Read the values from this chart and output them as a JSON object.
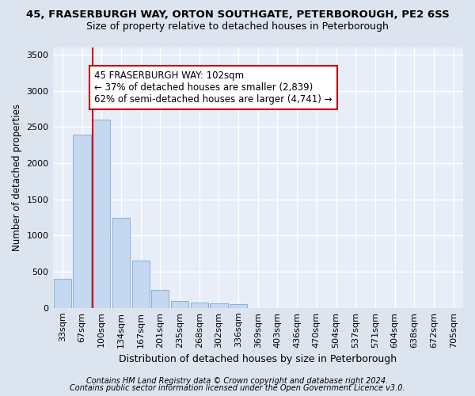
{
  "title_line1": "45, FRASERBURGH WAY, ORTON SOUTHGATE, PETERBOROUGH, PE2 6SS",
  "title_line2": "Size of property relative to detached houses in Peterborough",
  "xlabel": "Distribution of detached houses by size in Peterborough",
  "ylabel": "Number of detached properties",
  "categories": [
    "33sqm",
    "67sqm",
    "100sqm",
    "134sqm",
    "167sqm",
    "201sqm",
    "235sqm",
    "268sqm",
    "302sqm",
    "336sqm",
    "369sqm",
    "403sqm",
    "436sqm",
    "470sqm",
    "504sqm",
    "537sqm",
    "571sqm",
    "604sqm",
    "638sqm",
    "672sqm",
    "705sqm"
  ],
  "values": [
    400,
    2400,
    2600,
    1250,
    650,
    250,
    100,
    70,
    60,
    50,
    0,
    0,
    0,
    0,
    0,
    0,
    0,
    0,
    0,
    0,
    0
  ],
  "bar_color": "#c5d8f0",
  "bar_edge_color": "#8ab0d8",
  "highlight_line_color": "#cc0000",
  "annotation_text": "45 FRASERBURGH WAY: 102sqm\n← 37% of detached houses are smaller (2,839)\n62% of semi-detached houses are larger (4,741) →",
  "annotation_box_color": "#ffffff",
  "annotation_box_edge": "#cc0000",
  "ylim": [
    0,
    3600
  ],
  "yticks": [
    0,
    500,
    1000,
    1500,
    2000,
    2500,
    3000,
    3500
  ],
  "footer_line1": "Contains HM Land Registry data © Crown copyright and database right 2024.",
  "footer_line2": "Contains public sector information licensed under the Open Government Licence v3.0.",
  "bg_color": "#dce4f0",
  "plot_bg_color": "#e8eef8",
  "grid_color": "#ffffff",
  "title1_fontsize": 9.5,
  "title2_fontsize": 9,
  "xlabel_fontsize": 9,
  "ylabel_fontsize": 8.5,
  "tick_fontsize": 8,
  "annotation_fontsize": 8.5,
  "footer_fontsize": 7
}
